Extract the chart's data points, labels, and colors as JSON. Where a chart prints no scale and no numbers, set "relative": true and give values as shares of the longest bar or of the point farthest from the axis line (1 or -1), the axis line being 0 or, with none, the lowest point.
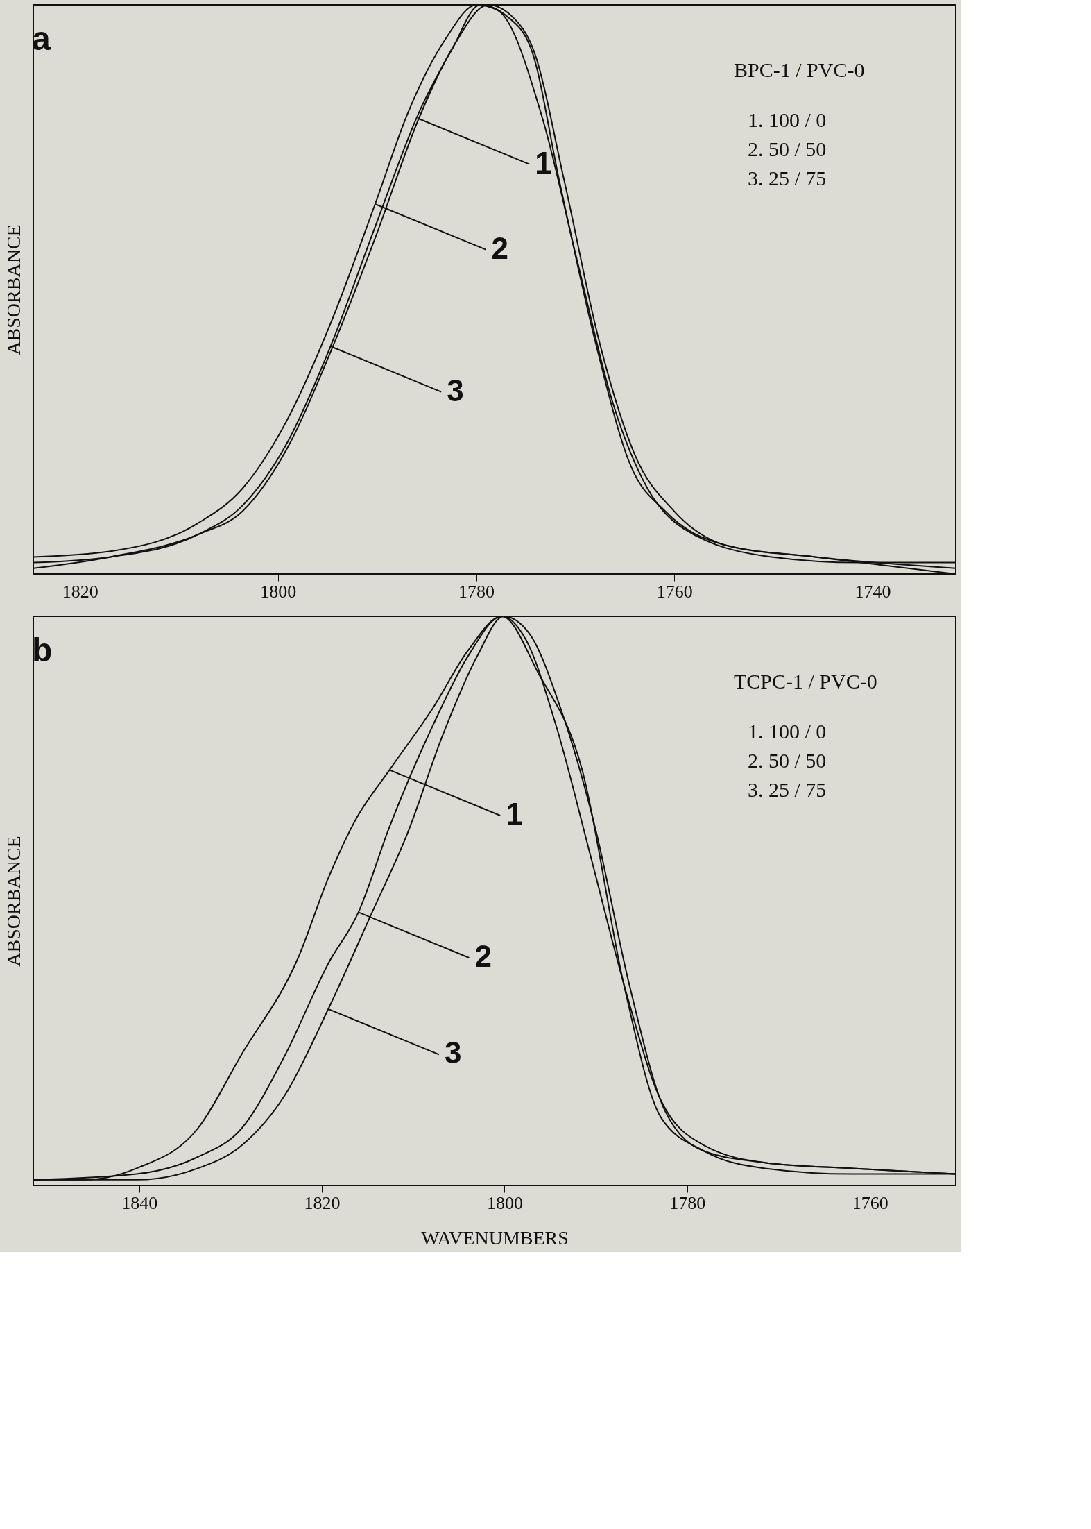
{
  "chart_data": [
    {
      "type": "line",
      "title": "a",
      "ylabel": "ABSORBANCE",
      "relative": true,
      "tick_labels": "x",
      "grid": false,
      "legend": "left",
      "marker": "none",
      "line_style": "solid",
      "xlim": [
        1824.7,
        1731.6
      ],
      "xticks": [
        1820,
        1800,
        1780,
        1760,
        1740
      ],
      "annotations": [
        "BPC-1 / PVC-0",
        "1.  100 / 0",
        "2.   50 / 50",
        "3.   25 / 75"
      ],
      "series": [
        {
          "name": "1",
          "color": "#111111",
          "x": [
            1824.7,
            1816.9,
            1808.0,
            1803.6,
            1799.1,
            1794.7,
            1790.2,
            1785.8,
            1782.2,
            1778.8,
            1776.4,
            1774.2,
            1771.1,
            1767.6,
            1764.0,
            1760.0,
            1754.7,
            1745.8,
            1731.6
          ],
          "values": [
            0.01,
            0.03,
            0.07,
            0.11,
            0.22,
            0.39,
            0.59,
            0.8,
            0.93,
            1.0,
            0.98,
            0.92,
            0.69,
            0.41,
            0.21,
            0.11,
            0.05,
            0.03,
            0.01
          ]
        },
        {
          "name": "2",
          "color": "#111111",
          "x": [
            1824.7,
            1816.9,
            1808.0,
            1803.6,
            1799.1,
            1794.7,
            1790.2,
            1786.9,
            1783.1,
            1780.0,
            1777.8,
            1773.3,
            1769.8,
            1766.2,
            1762.7,
            1759.1,
            1750.2,
            1741.3,
            1731.6
          ],
          "values": [
            0.03,
            0.04,
            0.09,
            0.15,
            0.27,
            0.44,
            0.65,
            0.81,
            0.94,
            1.0,
            0.99,
            0.8,
            0.55,
            0.3,
            0.15,
            0.08,
            0.03,
            0.02,
            0.02
          ]
        },
        {
          "name": "3",
          "color": "#111111",
          "x": [
            1824.7,
            1816.9,
            1808.0,
            1803.6,
            1799.1,
            1794.7,
            1790.2,
            1785.8,
            1782.5,
            1779.6,
            1776.9,
            1774.4,
            1771.6,
            1768.0,
            1764.4,
            1760.9,
            1754.7,
            1745.8,
            1731.6
          ],
          "values": [
            0.02,
            0.03,
            0.07,
            0.12,
            0.23,
            0.4,
            0.61,
            0.81,
            0.92,
            1.0,
            0.98,
            0.92,
            0.69,
            0.41,
            0.19,
            0.11,
            0.05,
            0.03,
            0.0
          ]
        }
      ]
    },
    {
      "type": "line",
      "title": "b",
      "xlabel": "WAVENUMBERS",
      "ylabel": "ABSORBANCE",
      "relative": true,
      "tick_labels": "x",
      "grid": false,
      "legend": "left",
      "marker": "none",
      "line_style": "solid",
      "xlim": [
        1851.6,
        1750.6
      ],
      "xticks": [
        1840,
        1820,
        1800,
        1780,
        1760
      ],
      "annotations": [
        "TCPC-1 / PVC-0",
        "1.  100 / 0",
        "2.   50 / 50",
        "3.   25 / 75"
      ],
      "series": [
        {
          "name": "1",
          "color": "#111111",
          "x": [
            1851.6,
            1846.0,
            1840.3,
            1833.6,
            1828.8,
            1822.6,
            1819.3,
            1816.4,
            1812.6,
            1807.8,
            1804.0,
            1800.3,
            1796.3,
            1791.5,
            1786.9,
            1782.9,
            1778.1,
            1771.5,
            1761.9,
            1750.6
          ],
          "values": [
            0.01,
            0.01,
            0.03,
            0.1,
            0.23,
            0.4,
            0.54,
            0.64,
            0.73,
            0.84,
            0.94,
            1.0,
            0.9,
            0.73,
            0.35,
            0.12,
            0.06,
            0.03,
            0.02,
            0.02
          ]
        },
        {
          "name": "2",
          "color": "#111111",
          "x": [
            1851.6,
            1840.3,
            1833.6,
            1828.8,
            1824.0,
            1819.3,
            1816.0,
            1812.6,
            1807.8,
            1804.0,
            1800.3,
            1797.7,
            1794.4,
            1790.6,
            1786.7,
            1782.9,
            1778.1,
            1771.5,
            1761.9,
            1750.6
          ],
          "values": [
            0.01,
            0.02,
            0.05,
            0.1,
            0.23,
            0.39,
            0.48,
            0.63,
            0.81,
            0.93,
            1.0,
            0.96,
            0.81,
            0.58,
            0.34,
            0.15,
            0.07,
            0.04,
            0.03,
            0.02
          ]
        },
        {
          "name": "3",
          "color": "#111111",
          "x": [
            1851.6,
            1840.3,
            1833.6,
            1828.8,
            1824.0,
            1819.3,
            1814.5,
            1810.6,
            1806.8,
            1803.0,
            1800.1,
            1797.3,
            1793.9,
            1790.1,
            1786.3,
            1782.4,
            1778.1,
            1771.5,
            1761.9,
            1750.6
          ],
          "values": [
            0.01,
            0.01,
            0.03,
            0.07,
            0.16,
            0.31,
            0.48,
            0.62,
            0.79,
            0.93,
            1.0,
            0.97,
            0.84,
            0.63,
            0.35,
            0.13,
            0.06,
            0.04,
            0.03,
            0.02
          ]
        }
      ]
    }
  ]
}
